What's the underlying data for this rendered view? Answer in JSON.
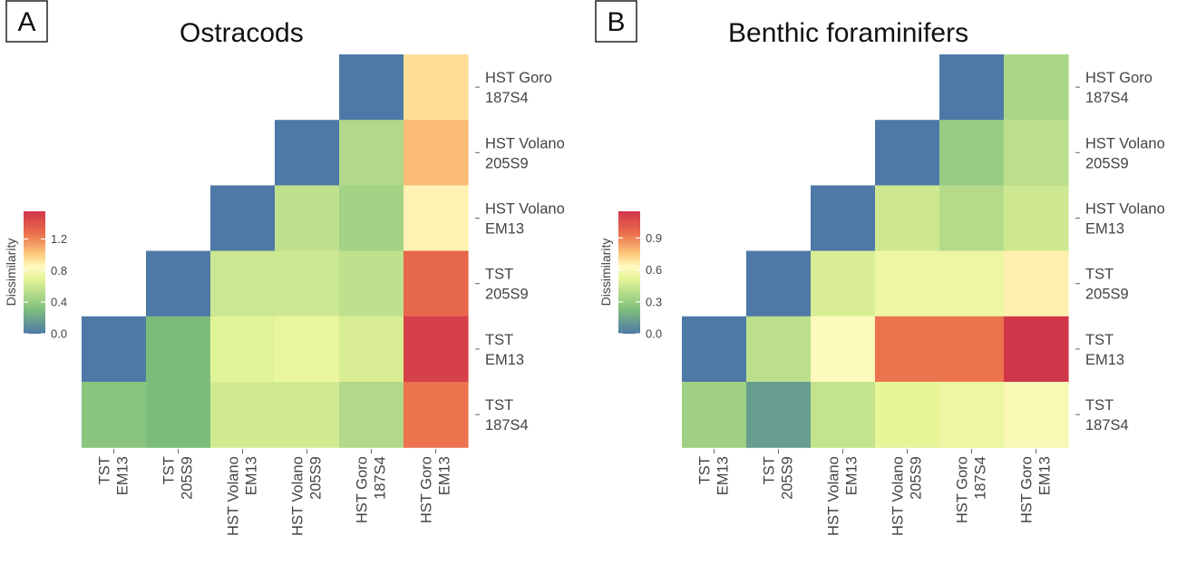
{
  "chart_data": [
    {
      "type": "heatmap",
      "panel_label": "A",
      "title": "Ostracods",
      "x_categories": [
        [
          "TST",
          "EM13"
        ],
        [
          "TST",
          "205S9"
        ],
        [
          "HST Volano",
          "EM13"
        ],
        [
          "HST Volano",
          "205S9"
        ],
        [
          "HST Goro",
          "187S4"
        ],
        [
          "HST Goro",
          "EM13"
        ]
      ],
      "y_categories": [
        [
          "HST Goro",
          "187S4"
        ],
        [
          "HST Volano",
          "205S9"
        ],
        [
          "HST Volano",
          "EM13"
        ],
        [
          "TST",
          "205S9"
        ],
        [
          "TST",
          "EM13"
        ],
        [
          "TST",
          "187S4"
        ]
      ],
      "values": [
        [
          null,
          null,
          null,
          null,
          0.0,
          0.95
        ],
        [
          null,
          null,
          null,
          0.0,
          0.5,
          1.05
        ],
        [
          null,
          null,
          0.0,
          0.55,
          0.45,
          0.88
        ],
        [
          null,
          0.0,
          0.6,
          0.6,
          0.55,
          1.3
        ],
        [
          0.0,
          0.3,
          0.68,
          0.72,
          0.65,
          1.5
        ],
        [
          0.35,
          0.3,
          0.62,
          0.62,
          0.5,
          1.25
        ]
      ],
      "legend": {
        "title": "Dissimilarity",
        "ticks": [
          "1.2",
          "0.8",
          "0.4",
          "0.0"
        ],
        "tick_values": [
          1.2,
          0.8,
          0.4,
          0.0
        ],
        "min": 0.0,
        "max": 1.55,
        "placement": "left"
      }
    },
    {
      "type": "heatmap",
      "panel_label": "B",
      "title": "Benthic foraminifers",
      "x_categories": [
        [
          "TST",
          "EM13"
        ],
        [
          "TST",
          "205S9"
        ],
        [
          "HST Volano",
          "EM13"
        ],
        [
          "HST Volano",
          "205S9"
        ],
        [
          "HST Goro",
          "187S4"
        ],
        [
          "HST Goro",
          "EM13"
        ]
      ],
      "y_categories": [
        [
          "HST Goro",
          "187S4"
        ],
        [
          "HST Volano",
          "205S9"
        ],
        [
          "HST Volano",
          "EM13"
        ],
        [
          "TST",
          "205S9"
        ],
        [
          "TST",
          "EM13"
        ],
        [
          "TST",
          "187S4"
        ]
      ],
      "values": [
        [
          null,
          null,
          null,
          null,
          0.0,
          0.35
        ],
        [
          null,
          null,
          null,
          0.0,
          0.3,
          0.4
        ],
        [
          null,
          null,
          0.0,
          0.45,
          0.38,
          0.45
        ],
        [
          null,
          0.0,
          0.48,
          0.55,
          0.55,
          0.66
        ],
        [
          0.0,
          0.4,
          0.62,
          0.93,
          0.93,
          1.15
        ],
        [
          0.32,
          0.12,
          0.42,
          0.52,
          0.55,
          0.6
        ]
      ],
      "legend": {
        "title": "Dissimilarity",
        "ticks": [
          "0.9",
          "0.6",
          "0.3",
          "0.0"
        ],
        "tick_values": [
          0.9,
          0.6,
          0.3,
          0.0
        ],
        "min": 0.0,
        "max": 1.15,
        "placement": "left"
      }
    }
  ],
  "colors": {
    "scale": [
      "#4e79a7",
      "#7fbf7b",
      "#e6f598",
      "#fffbbf",
      "#fdcb7d",
      "#ea6d4b",
      "#d0364a"
    ],
    "panel_border": "#222222"
  }
}
